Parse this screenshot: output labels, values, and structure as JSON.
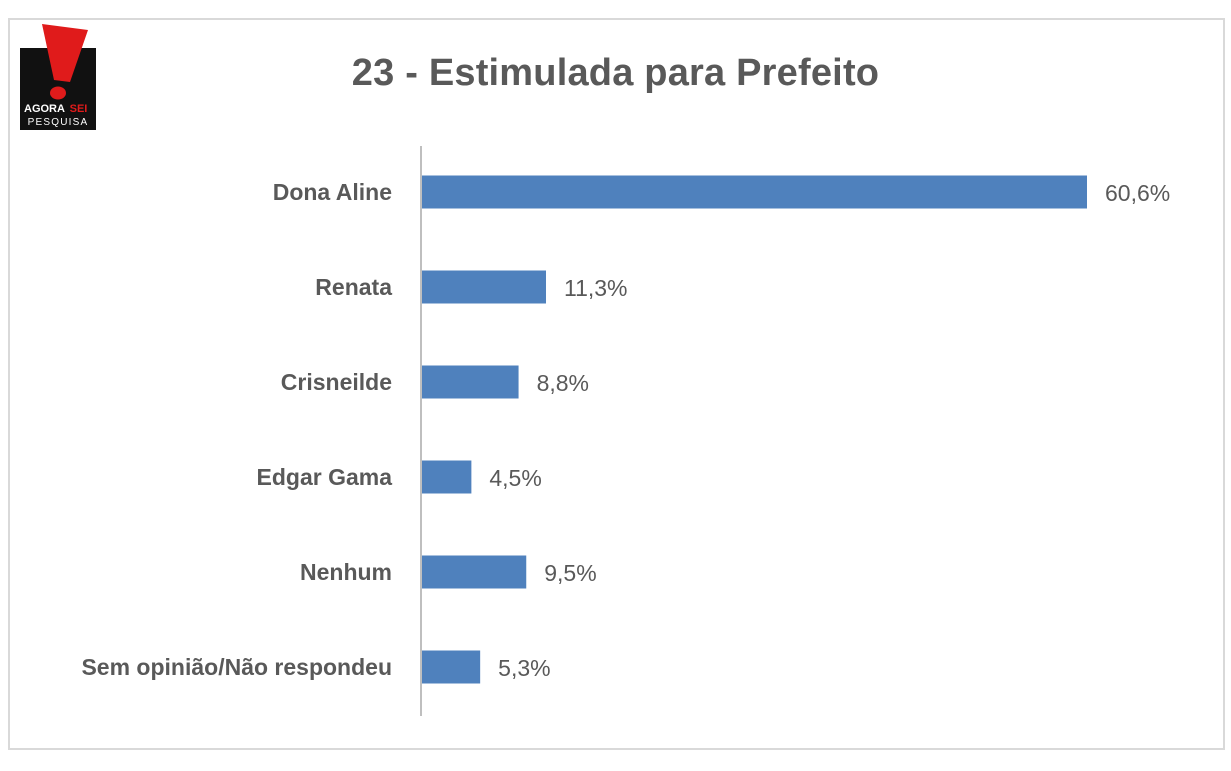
{
  "logo": {
    "brand_line1_part1": "AGORA",
    "brand_line1_part2": "SEI",
    "brand_line2": "PESQUISA",
    "colors": {
      "background": "#111111",
      "accent": "#e01b1b",
      "text": "#ffffff"
    }
  },
  "chart_data": {
    "type": "bar",
    "orientation": "horizontal",
    "title": "23 - Estimulada para Prefeito",
    "categories": [
      "Dona Aline",
      "Renata",
      "Crisneilde",
      "Edgar Gama",
      "Nenhum",
      "Sem opinião/Não respondeu"
    ],
    "values": [
      60.6,
      11.3,
      8.8,
      4.5,
      9.5,
      5.3
    ],
    "value_labels": [
      "60,6%",
      "11,3%",
      "8,8%",
      "4,5%",
      "9,5%",
      "5,3%"
    ],
    "unit": "%",
    "xlim": [
      0,
      60.6
    ],
    "grid": false,
    "legend": "none",
    "bar_color": "#4f81bd",
    "axis_color": "#bfbfbf",
    "text_color": "#595959"
  }
}
